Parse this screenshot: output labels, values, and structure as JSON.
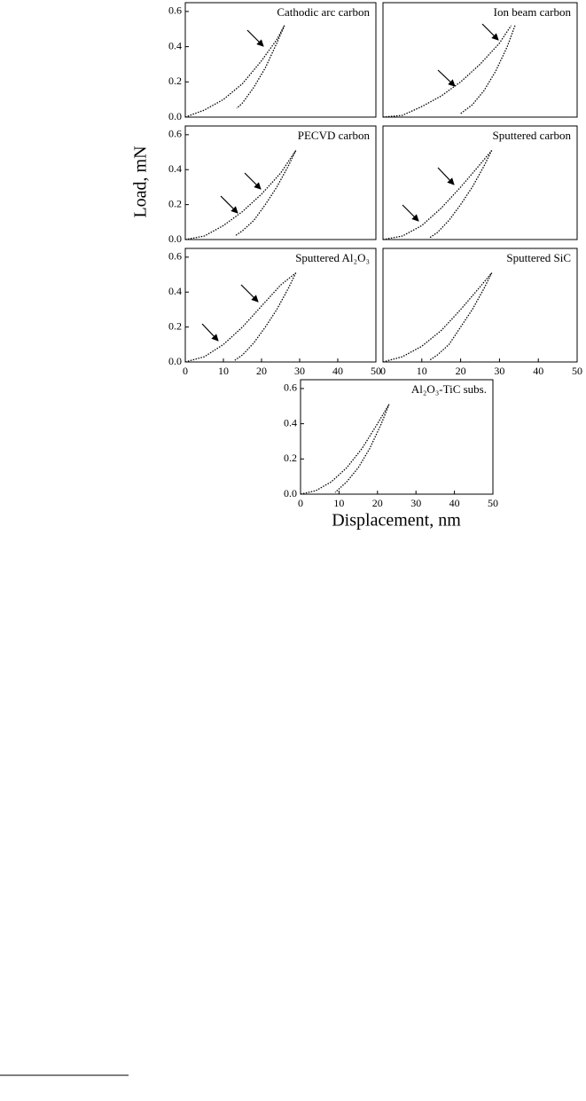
{
  "figure": {
    "ylabel": "Load, mN",
    "xlabel": "Displacement, nm"
  },
  "chart_data": [
    {
      "type": "line",
      "title": "Cathodic arc carbon",
      "xlim": [
        0,
        50
      ],
      "ylim": [
        0,
        0.65
      ],
      "yticks": [
        {
          "value": 0,
          "label": "0.0"
        },
        {
          "value": 0.2,
          "label": "0.2"
        },
        {
          "value": 0.4,
          "label": "0.4"
        },
        {
          "value": 0.6,
          "label": "0.6"
        }
      ],
      "series": [
        {
          "color": "#000000",
          "x": [
            0,
            5,
            10,
            15,
            20,
            24,
            26
          ],
          "values": [
            0,
            0.04,
            0.1,
            0.19,
            0.32,
            0.44,
            0.52
          ]
        },
        {
          "color": "#000000",
          "x": [
            26,
            24,
            21,
            18,
            15,
            13.5
          ],
          "values": [
            0.52,
            0.42,
            0.28,
            0.17,
            0.08,
            0.05
          ]
        }
      ]
    },
    {
      "type": "line",
      "title": "Ion beam carbon",
      "xlim": [
        0,
        50
      ],
      "ylim": [
        0,
        0.65
      ],
      "series": [
        {
          "color": "#000000",
          "x": [
            0,
            5,
            10,
            15,
            20,
            25,
            30,
            33
          ],
          "values": [
            0,
            0.01,
            0.06,
            0.12,
            0.2,
            0.3,
            0.42,
            0.52
          ]
        },
        {
          "color": "#000000",
          "x": [
            34,
            32,
            29,
            26,
            23,
            20
          ],
          "values": [
            0.52,
            0.4,
            0.26,
            0.15,
            0.07,
            0.02
          ]
        }
      ]
    },
    {
      "type": "line",
      "title": "PECVD carbon",
      "xlim": [
        0,
        50
      ],
      "ylim": [
        0,
        0.65
      ],
      "yticks": [
        {
          "value": 0,
          "label": "0.0"
        },
        {
          "value": 0.2,
          "label": "0.2"
        },
        {
          "value": 0.4,
          "label": "0.4"
        },
        {
          "value": 0.6,
          "label": "0.6"
        }
      ],
      "series": [
        {
          "color": "#000000",
          "x": [
            0,
            5,
            10,
            15,
            20,
            25,
            29
          ],
          "values": [
            0,
            0.02,
            0.08,
            0.16,
            0.26,
            0.38,
            0.51
          ]
        },
        {
          "color": "#000000",
          "x": [
            29,
            27,
            24,
            21,
            18,
            15,
            13
          ],
          "values": [
            0.51,
            0.42,
            0.3,
            0.2,
            0.11,
            0.05,
            0.02
          ]
        }
      ]
    },
    {
      "type": "line",
      "title": "Sputtered carbon",
      "xlim": [
        0,
        50
      ],
      "ylim": [
        0,
        0.65
      ],
      "series": [
        {
          "color": "#000000",
          "x": [
            0,
            5,
            10,
            15,
            20,
            25,
            28
          ],
          "values": [
            0,
            0.02,
            0.08,
            0.18,
            0.3,
            0.43,
            0.51
          ]
        },
        {
          "color": "#000000",
          "x": [
            28,
            26,
            23,
            20,
            17,
            14,
            12
          ],
          "values": [
            0.51,
            0.42,
            0.3,
            0.2,
            0.11,
            0.04,
            0.01
          ]
        }
      ]
    },
    {
      "type": "line",
      "title": "Sputtered Al₂O₃",
      "xlim": [
        0,
        50
      ],
      "ylim": [
        0,
        0.65
      ],
      "xticks": [
        0,
        10,
        20,
        30,
        40,
        50
      ],
      "yticks": [
        {
          "value": 0,
          "label": "0.0"
        },
        {
          "value": 0.2,
          "label": "0.2"
        },
        {
          "value": 0.4,
          "label": "0.4"
        },
        {
          "value": 0.6,
          "label": "0.6"
        }
      ],
      "series": [
        {
          "color": "#000000",
          "x": [
            0,
            5,
            10,
            15,
            20,
            25,
            29
          ],
          "values": [
            0,
            0.03,
            0.1,
            0.2,
            0.32,
            0.44,
            0.51
          ]
        },
        {
          "color": "#000000",
          "x": [
            29,
            27,
            24,
            21,
            18,
            15,
            13
          ],
          "values": [
            0.51,
            0.42,
            0.3,
            0.2,
            0.11,
            0.04,
            0.01
          ]
        }
      ]
    },
    {
      "type": "line",
      "title": "Sputtered SiC",
      "xlim": [
        0,
        50
      ],
      "ylim": [
        0,
        0.65
      ],
      "xticks": [
        0,
        10,
        20,
        30,
        40,
        50
      ],
      "series": [
        {
          "color": "#000000",
          "x": [
            0,
            5,
            10,
            15,
            20,
            25,
            28
          ],
          "values": [
            0,
            0.03,
            0.09,
            0.18,
            0.3,
            0.43,
            0.51
          ]
        },
        {
          "color": "#000000",
          "x": [
            28,
            26,
            23,
            20,
            17,
            14,
            12
          ],
          "values": [
            0.51,
            0.42,
            0.3,
            0.2,
            0.1,
            0.04,
            0.01
          ]
        }
      ]
    },
    {
      "type": "line",
      "title": "Al₂O₃-TiC subs.",
      "xlim": [
        0,
        50
      ],
      "ylim": [
        0,
        0.65
      ],
      "xticks": [
        0,
        10,
        20,
        30,
        40,
        50
      ],
      "yticks": [
        {
          "value": 0,
          "label": "0.0"
        },
        {
          "value": 0.2,
          "label": "0.2"
        },
        {
          "value": 0.4,
          "label": "0.4"
        },
        {
          "value": 0.6,
          "label": "0.6"
        }
      ],
      "series": [
        {
          "color": "#000000",
          "x": [
            0,
            4,
            8,
            12,
            16,
            20,
            23
          ],
          "values": [
            0,
            0.02,
            0.07,
            0.15,
            0.26,
            0.4,
            0.51
          ]
        },
        {
          "color": "#000000",
          "x": [
            23,
            21,
            18,
            15,
            12,
            10,
            9
          ],
          "values": [
            0.51,
            0.4,
            0.26,
            0.15,
            0.07,
            0.03,
            0.01
          ]
        }
      ]
    }
  ]
}
